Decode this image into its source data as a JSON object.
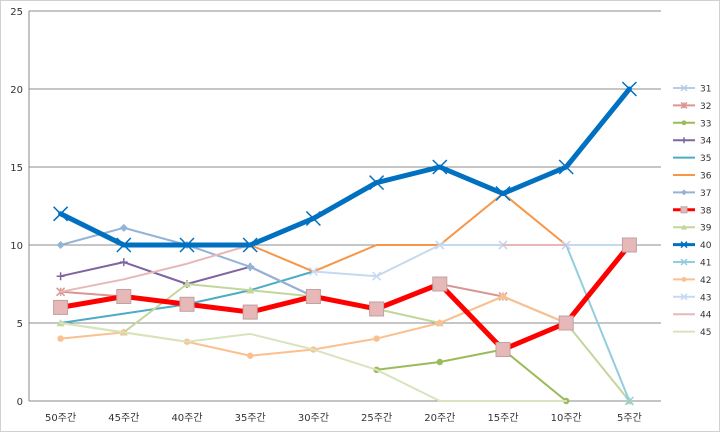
{
  "chart_data": {
    "type": "line",
    "title": "",
    "xlabel": "",
    "ylabel": "",
    "ylim": [
      0,
      25
    ],
    "yticks": [
      0,
      5,
      10,
      15,
      20,
      25
    ],
    "grid": "horizontal",
    "legend_position": "right",
    "categories": [
      "50주간",
      "45주간",
      "40주간",
      "35주간",
      "30주간",
      "25주간",
      "20주간",
      "15주간",
      "10주간",
      "5주간"
    ],
    "series": [
      {
        "name": "31",
        "color": "#b8cce4",
        "marker": "x",
        "width": 2,
        "values": [
          null,
          null,
          null,
          null,
          null,
          null,
          null,
          null,
          null,
          null
        ]
      },
      {
        "name": "32",
        "color": "#d99694",
        "marker": "star",
        "width": 2,
        "values": [
          7,
          6.7,
          6.2,
          5.7,
          6.7,
          5.9,
          7.5,
          6.7,
          5,
          10
        ]
      },
      {
        "name": "33",
        "color": "#9bbb59",
        "marker": "circle",
        "width": 2,
        "values": [
          null,
          null,
          null,
          null,
          null,
          2,
          2.5,
          3.3,
          0,
          null
        ]
      },
      {
        "name": "34",
        "color": "#8064a2",
        "marker": "plus",
        "width": 2,
        "values": [
          8,
          8.9,
          7.5,
          8.6,
          6.7,
          null,
          null,
          null,
          null,
          null
        ]
      },
      {
        "name": "35",
        "color": "#4bacc6",
        "marker": "none",
        "width": 2,
        "values": [
          5,
          5.6,
          6.2,
          7.1,
          8.3,
          null,
          null,
          null,
          null,
          null
        ]
      },
      {
        "name": "36",
        "color": "#f79646",
        "marker": "none",
        "width": 2,
        "values": [
          null,
          null,
          null,
          10,
          8.3,
          10,
          10,
          13.3,
          10,
          10
        ]
      },
      {
        "name": "37",
        "color": "#95b3d7",
        "marker": "diamond",
        "width": 2,
        "values": [
          10,
          11.1,
          10,
          8.6,
          6.7,
          null,
          null,
          null,
          null,
          null
        ]
      },
      {
        "name": "38",
        "color": "#ff0000",
        "marker": "square",
        "width": 5,
        "values": [
          6,
          6.7,
          6.2,
          5.7,
          6.7,
          5.9,
          7.5,
          3.3,
          5,
          10
        ]
      },
      {
        "name": "39",
        "color": "#c3d69b",
        "marker": "triangle",
        "width": 2,
        "values": [
          5,
          4.4,
          7.5,
          7.1,
          6.7,
          5.9,
          5,
          6.7,
          5,
          0
        ]
      },
      {
        "name": "40",
        "color": "#0070c0",
        "marker": "x",
        "width": 5,
        "values": [
          12,
          10,
          10,
          10,
          11.7,
          14,
          15,
          13.3,
          15,
          20
        ]
      },
      {
        "name": "41",
        "color": "#93cddd",
        "marker": "x",
        "width": 2,
        "values": [
          null,
          null,
          null,
          null,
          null,
          null,
          10,
          10,
          10,
          0
        ]
      },
      {
        "name": "42",
        "color": "#fac090",
        "marker": "circle",
        "width": 2,
        "values": [
          4,
          4.4,
          3.8,
          2.9,
          3.3,
          4,
          5,
          6.7,
          5,
          null
        ]
      },
      {
        "name": "43",
        "color": "#c6d9f1",
        "marker": "x",
        "width": 2,
        "values": [
          null,
          null,
          null,
          null,
          8.3,
          8,
          10,
          10,
          10,
          10
        ]
      },
      {
        "name": "44",
        "color": "#e6b9b8",
        "marker": "none",
        "width": 2,
        "values": [
          7,
          7.8,
          8.8,
          10,
          null,
          null,
          null,
          10,
          10,
          null
        ]
      },
      {
        "name": "45",
        "color": "#d7e4bd",
        "marker": "none",
        "width": 2,
        "values": [
          5,
          4.4,
          3.8,
          4.3,
          3.3,
          2,
          0,
          0,
          0,
          null
        ]
      }
    ]
  }
}
